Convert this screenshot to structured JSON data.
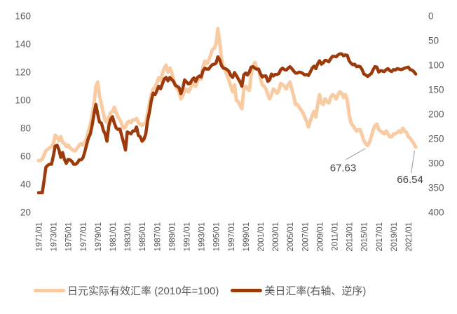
{
  "colors": {
    "series_reer": "#F9CBA3",
    "series_usdjpy": "#9C3A0B",
    "axis_text": "#595959",
    "annotation_text": "#404040",
    "leader_line": "#A6A6A6",
    "background": "#FFFFFF"
  },
  "chart_data": {
    "type": "line",
    "title": "",
    "legend_position": "bottom",
    "grid": "off",
    "x_axis": {
      "tick_labels": [
        "1971/01",
        "1973/01",
        "1975/01",
        "1977/01",
        "1979/01",
        "1981/01",
        "1983/01",
        "1985/01",
        "1987/01",
        "1989/01",
        "1991/01",
        "1993/01",
        "1995/01",
        "1997/01",
        "1999/01",
        "2001/01",
        "2003/01",
        "2005/01",
        "2007/01",
        "2009/01",
        "2011/01",
        "2013/01",
        "2015/01",
        "2017/01",
        "2019/01",
        "2021/01"
      ],
      "tick_years": [
        1971,
        1973,
        1975,
        1977,
        1979,
        1981,
        1983,
        1985,
        1987,
        1989,
        1991,
        1993,
        1995,
        1997,
        1999,
        2001,
        2003,
        2005,
        2007,
        2009,
        2011,
        2013,
        2015,
        2017,
        2019,
        2021
      ],
      "label_rotation_deg": -90,
      "data_start_year": 1971.0,
      "data_end_year": 2022.0
    },
    "left_axis": {
      "min": 20,
      "max": 160,
      "ticks": [
        160,
        140,
        120,
        100,
        80,
        60,
        40,
        20
      ]
    },
    "right_axis": {
      "min": 0,
      "max": 400,
      "inverted": true,
      "ticks": [
        0,
        50,
        100,
        150,
        200,
        250,
        300,
        350,
        400
      ]
    },
    "series": [
      {
        "name": "日元实际有效汇率 (2010年=100)",
        "axis": "left",
        "color": "#F9CBA3",
        "stroke_width": 5,
        "x_start": 1971.0,
        "x_step": 0.25,
        "values": [
          57,
          57,
          58,
          61,
          64,
          65,
          66,
          67,
          69,
          75,
          74,
          71,
          74,
          70,
          69,
          67,
          68,
          66,
          65,
          64,
          64,
          66,
          68,
          69,
          68,
          70,
          73,
          78,
          83,
          89,
          97,
          110,
          113,
          103,
          97,
          91,
          86,
          84,
          88,
          91,
          92,
          95,
          91,
          88,
          86,
          83,
          80,
          81,
          84,
          85,
          84,
          86,
          86,
          87,
          84,
          83,
          82,
          83,
          84,
          91,
          98,
          104,
          108,
          109,
          112,
          116,
          114,
          119,
          123,
          125,
          120,
          123,
          120,
          115,
          110,
          108,
          106,
          101,
          103,
          107,
          108,
          106,
          108,
          111,
          112,
          110,
          114,
          116,
          115,
          124,
          128,
          126,
          128,
          132,
          136,
          137,
          140,
          151,
          141,
          129,
          124,
          121,
          118,
          114,
          110,
          106,
          111,
          100,
          99,
          96,
          94,
          108,
          110,
          108,
          107,
          118,
          124,
          127,
          123,
          122,
          116,
          111,
          110,
          108,
          104,
          101,
          104,
          108,
          107,
          105,
          107,
          112,
          111,
          110,
          108,
          111,
          113,
          108,
          103,
          97,
          97,
          95,
          93,
          91,
          88,
          85,
          81,
          85,
          89,
          92,
          88,
          97,
          104,
          98,
          97,
          101,
          99,
          98,
          102,
          104,
          103,
          101,
          104,
          106,
          105,
          102,
          104,
          100,
          90,
          84,
          82,
          80,
          78,
          79,
          79,
          75,
          71,
          69,
          67.63,
          70,
          74,
          79,
          82,
          83,
          79,
          78,
          77,
          76,
          78,
          76,
          74,
          74,
          76,
          76,
          77,
          78,
          77,
          80,
          78,
          77,
          74,
          73,
          71,
          69,
          66.54
        ]
      },
      {
        "name": "美日汇率(右轴、逆序)",
        "axis": "right",
        "color": "#9C3A0B",
        "stroke_width": 4.5,
        "x_start": 1971.0,
        "x_step": 0.25,
        "values": [
          360,
          360,
          360,
          335,
          308,
          304,
          302,
          302,
          285,
          265,
          263,
          272,
          288,
          278,
          292,
          300,
          292,
          293,
          296,
          302,
          302,
          299,
          293,
          293,
          289,
          277,
          262,
          248,
          240,
          222,
          200,
          180,
          200,
          216,
          218,
          232,
          240,
          255,
          224,
          210,
          205,
          218,
          228,
          231,
          230,
          244,
          258,
          273,
          236,
          238,
          240,
          234,
          234,
          226,
          243,
          246,
          255,
          251,
          240,
          213,
          195,
          172,
          157,
          160,
          152,
          143,
          148,
          138,
          128,
          125,
          132,
          125,
          129,
          133,
          141,
          143,
          146,
          158,
          148,
          130,
          134,
          138,
          137,
          130,
          126,
          133,
          125,
          122,
          124,
          111,
          106,
          108,
          108,
          103,
          99,
          98,
          96,
          83,
          89,
          101,
          106,
          107,
          109,
          113,
          121,
          125,
          115,
          121,
          128,
          134,
          143,
          120,
          116,
          120,
          114,
          104,
          103,
          106,
          108,
          108,
          117,
          124,
          122,
          122,
          133,
          130,
          118,
          122,
          119,
          119,
          117,
          109,
          106,
          109,
          110,
          106,
          103,
          107,
          112,
          116,
          116,
          114,
          115,
          117,
          120,
          119,
          121,
          114,
          106,
          102,
          107,
          97,
          91,
          98,
          95,
          90,
          91,
          93,
          87,
          82,
          82,
          83,
          79,
          77,
          77,
          81,
          79,
          80,
          91,
          96,
          99,
          98,
          103,
          102,
          103,
          109,
          118,
          120,
          123,
          120,
          117,
          109,
          103,
          104,
          114,
          111,
          112,
          113,
          109,
          107,
          111,
          113,
          109,
          110,
          107,
          108,
          109,
          108,
          106,
          105,
          104,
          109,
          110,
          113,
          118
        ]
      }
    ],
    "annotations": [
      {
        "label": "67.63",
        "x": 2015.5,
        "value": 67.63,
        "axis": "left"
      },
      {
        "label": "66.54",
        "x": 2022.0,
        "value": 66.54,
        "axis": "left"
      }
    ]
  },
  "legend": {
    "items": [
      {
        "label": "日元实际有效汇率 (2010年=100)"
      },
      {
        "label": "美日汇率(右轴、逆序)"
      }
    ]
  }
}
